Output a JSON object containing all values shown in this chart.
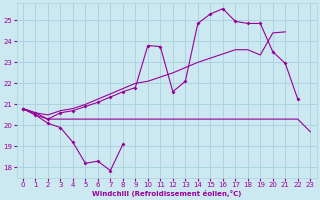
{
  "xlabel": "Windchill (Refroidissement éolien,°C)",
  "xlim": [
    -0.5,
    23.5
  ],
  "ylim": [
    17.5,
    25.8
  ],
  "xticks": [
    0,
    1,
    2,
    3,
    4,
    5,
    6,
    7,
    8,
    9,
    10,
    11,
    12,
    13,
    14,
    15,
    16,
    17,
    18,
    19,
    20,
    21,
    22,
    23
  ],
  "yticks": [
    18,
    19,
    20,
    21,
    22,
    23,
    24,
    25
  ],
  "bg_color": "#cce8f0",
  "grid_color": "#aad4e0",
  "line_color": "#990099",
  "line1_x": [
    0,
    1,
    2,
    3,
    4,
    5,
    6,
    7,
    8
  ],
  "line1_y": [
    20.8,
    20.5,
    20.1,
    19.9,
    19.2,
    18.2,
    18.3,
    17.85,
    19.1
  ],
  "line2_x": [
    0,
    1,
    2,
    3,
    4,
    5,
    6,
    7,
    8,
    9,
    10,
    11,
    12,
    13,
    14,
    15,
    16,
    17,
    18,
    19,
    20,
    21,
    22,
    23
  ],
  "line2_y": [
    20.8,
    20.5,
    20.3,
    20.3,
    20.3,
    20.3,
    20.3,
    20.3,
    20.3,
    20.3,
    20.3,
    20.3,
    20.3,
    20.3,
    20.3,
    20.3,
    20.3,
    20.3,
    20.3,
    20.3,
    20.3,
    20.3,
    20.3,
    19.7
  ],
  "line3_x": [
    0,
    1,
    2,
    3,
    4,
    5,
    6,
    7,
    8,
    9,
    10,
    11,
    12,
    13,
    14,
    15,
    16,
    17,
    18,
    19,
    20,
    21,
    22
  ],
  "line3_y": [
    20.8,
    20.6,
    20.3,
    20.6,
    20.7,
    20.9,
    21.1,
    21.35,
    21.6,
    21.8,
    23.8,
    23.75,
    21.6,
    22.1,
    24.85,
    25.3,
    25.55,
    24.95,
    24.85,
    24.85,
    23.5,
    22.95,
    21.25
  ],
  "line4_x": [
    0,
    1,
    2,
    3,
    4,
    5,
    6,
    7,
    8,
    9,
    10,
    11,
    12,
    13,
    14,
    15,
    16,
    17,
    18,
    19,
    20,
    21
  ],
  "line4_y": [
    20.8,
    20.6,
    20.5,
    20.7,
    20.8,
    21.0,
    21.25,
    21.5,
    21.75,
    22.0,
    22.1,
    22.3,
    22.5,
    22.75,
    23.0,
    23.2,
    23.4,
    23.6,
    23.6,
    23.35,
    24.4,
    24.45
  ]
}
